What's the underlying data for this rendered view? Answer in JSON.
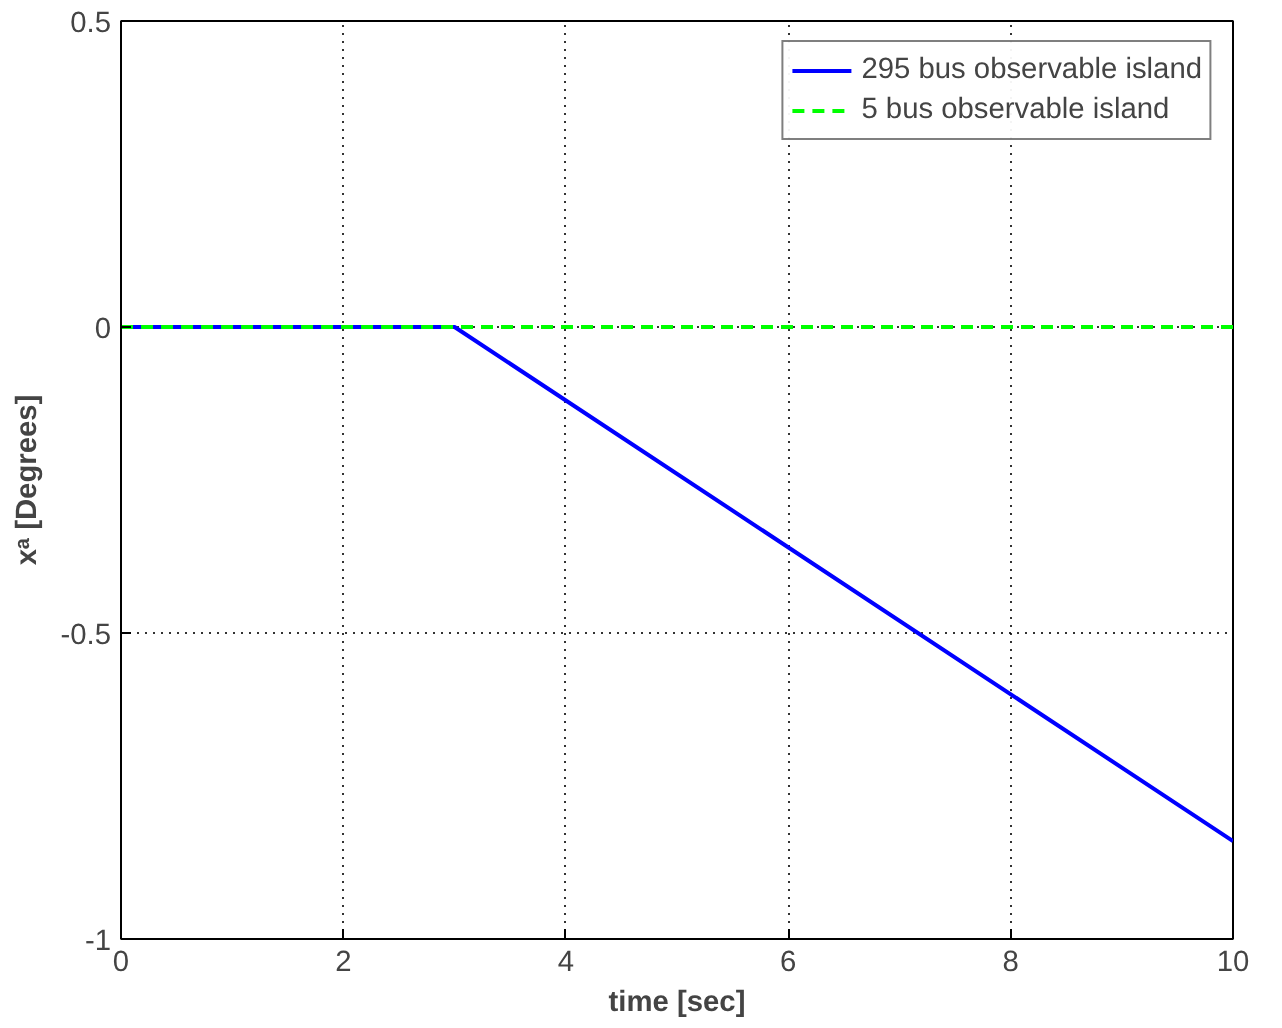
{
  "chart_data": {
    "type": "line",
    "xlabel": "time [sec]",
    "ylabel": "xᵃ [Degrees]",
    "xlim": [
      0,
      10
    ],
    "ylim": [
      -1,
      0.5
    ],
    "xticks": [
      0,
      2,
      4,
      6,
      8,
      10
    ],
    "yticks": [
      -1,
      -0.5,
      0,
      0.5
    ],
    "grid": true,
    "legend": "top right",
    "series": [
      {
        "name": "295 bus observable island",
        "color": "#0000ff",
        "line_style": "solid",
        "x": [
          0,
          3,
          10
        ],
        "values": [
          0,
          0,
          -0.84
        ]
      },
      {
        "name": "5 bus observable island",
        "color": "#00ff00",
        "line_style": "dashed",
        "x": [
          0,
          10
        ],
        "values": [
          0,
          0
        ]
      }
    ]
  }
}
